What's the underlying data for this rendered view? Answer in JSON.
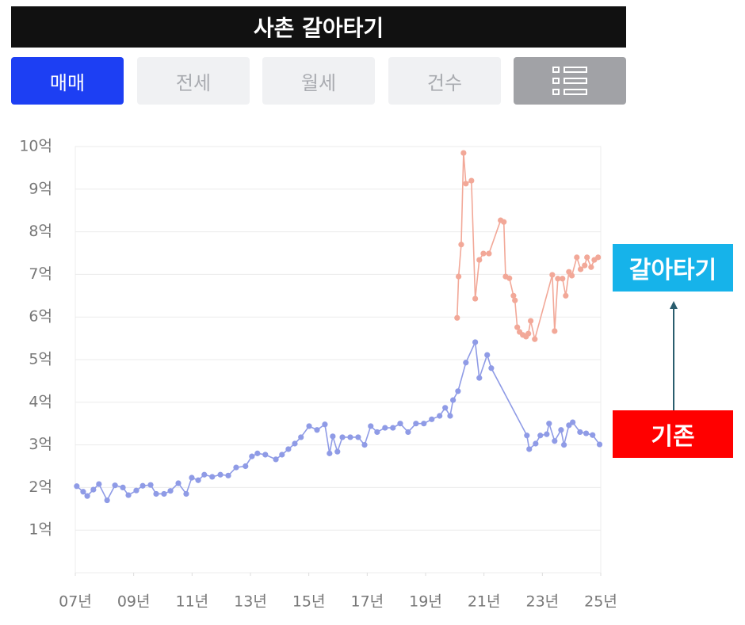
{
  "header": {
    "title": "사촌 갈아타기"
  },
  "tabs": [
    "매매",
    "전세",
    "월세",
    "건수"
  ],
  "chart_data": {
    "type": "line",
    "xlim": [
      2007,
      2025
    ],
    "ylim": [
      0,
      10
    ],
    "xticks": [
      {
        "value": 2007,
        "label": "07년"
      },
      {
        "value": 2009,
        "label": "09년"
      },
      {
        "value": 2011,
        "label": "11년"
      },
      {
        "value": 2013,
        "label": "13년"
      },
      {
        "value": 2015,
        "label": "15년"
      },
      {
        "value": 2017,
        "label": "17년"
      },
      {
        "value": 2019,
        "label": "19년"
      },
      {
        "value": 2021,
        "label": "21년"
      },
      {
        "value": 2023,
        "label": "23년"
      },
      {
        "value": 2025,
        "label": "25년"
      }
    ],
    "yticks": [
      {
        "value": 1,
        "label": "1억"
      },
      {
        "value": 2,
        "label": "2억"
      },
      {
        "value": 3,
        "label": "3억"
      },
      {
        "value": 4,
        "label": "4억"
      },
      {
        "value": 5,
        "label": "5억"
      },
      {
        "value": 6,
        "label": "6억"
      },
      {
        "value": 7,
        "label": "7억"
      },
      {
        "value": 8,
        "label": "8억"
      },
      {
        "value": 9,
        "label": "9억"
      },
      {
        "value": 10,
        "label": "10억"
      }
    ],
    "grid": true,
    "series": [
      {
        "name": "기존",
        "color": "#8f9be6",
        "x": [
          2007.05,
          2007.27,
          2007.41,
          2007.62,
          2007.81,
          2008.09,
          2008.36,
          2008.63,
          2008.82,
          2009.09,
          2009.31,
          2009.58,
          2009.77,
          2010.04,
          2010.26,
          2010.53,
          2010.8,
          2010.99,
          2011.21,
          2011.42,
          2011.69,
          2011.97,
          2012.24,
          2012.51,
          2012.83,
          2013.05,
          2013.24,
          2013.51,
          2013.87,
          2014.08,
          2014.3,
          2014.52,
          2014.73,
          2015.01,
          2015.28,
          2015.55,
          2015.71,
          2015.82,
          2015.98,
          2016.15,
          2016.42,
          2016.69,
          2016.91,
          2017.12,
          2017.34,
          2017.61,
          2017.88,
          2018.13,
          2018.4,
          2018.67,
          2018.94,
          2019.21,
          2019.48,
          2019.67,
          2019.84,
          2019.94,
          2020.11,
          2020.38,
          2020.7,
          2020.84,
          2021.11,
          2021.25,
          2022.47,
          2022.55,
          2022.77,
          2022.93,
          2023.15,
          2023.23,
          2023.42,
          2023.64,
          2023.74,
          2023.91,
          2024.04,
          2024.29,
          2024.5,
          2024.72,
          2024.96
        ],
        "values": [
          2.03,
          1.9,
          1.8,
          1.95,
          2.08,
          1.7,
          2.05,
          2.0,
          1.82,
          1.93,
          2.04,
          2.06,
          1.85,
          1.85,
          1.92,
          2.1,
          1.85,
          2.23,
          2.17,
          2.3,
          2.25,
          2.3,
          2.28,
          2.47,
          2.5,
          2.73,
          2.8,
          2.77,
          2.66,
          2.77,
          2.9,
          3.03,
          3.18,
          3.44,
          3.35,
          3.48,
          2.8,
          3.2,
          2.84,
          3.18,
          3.18,
          3.18,
          3.0,
          3.44,
          3.3,
          3.4,
          3.4,
          3.5,
          3.3,
          3.5,
          3.5,
          3.6,
          3.68,
          3.87,
          3.68,
          4.05,
          4.26,
          4.93,
          5.41,
          4.57,
          5.11,
          4.8,
          3.22,
          2.9,
          3.03,
          3.22,
          3.25,
          3.5,
          3.09,
          3.35,
          3.0,
          3.46,
          3.53,
          3.3,
          3.27,
          3.23,
          3.01
        ]
      },
      {
        "name": "갈아타기",
        "color": "#f2a898",
        "x": [
          2020.08,
          2020.13,
          2020.22,
          2020.3,
          2020.38,
          2020.57,
          2020.7,
          2020.84,
          2020.98,
          2021.17,
          2021.57,
          2021.68,
          2021.74,
          2021.87,
          2022.01,
          2022.06,
          2022.14,
          2022.22,
          2022.33,
          2022.44,
          2022.52,
          2022.6,
          2022.74,
          2023.34,
          2023.42,
          2023.53,
          2023.69,
          2023.8,
          2023.91,
          2024.01,
          2024.18,
          2024.31,
          2024.45,
          2024.53,
          2024.67,
          2024.78,
          2024.91
        ],
        "values": [
          5.98,
          6.95,
          7.7,
          9.85,
          9.13,
          9.2,
          6.43,
          7.34,
          7.49,
          7.49,
          8.27,
          8.23,
          6.95,
          6.91,
          6.5,
          6.39,
          5.76,
          5.65,
          5.58,
          5.54,
          5.61,
          5.91,
          5.48,
          6.99,
          5.67,
          6.9,
          6.9,
          6.5,
          7.06,
          6.97,
          7.4,
          7.12,
          7.21,
          7.4,
          7.17,
          7.34,
          7.4
        ]
      }
    ]
  }
}
